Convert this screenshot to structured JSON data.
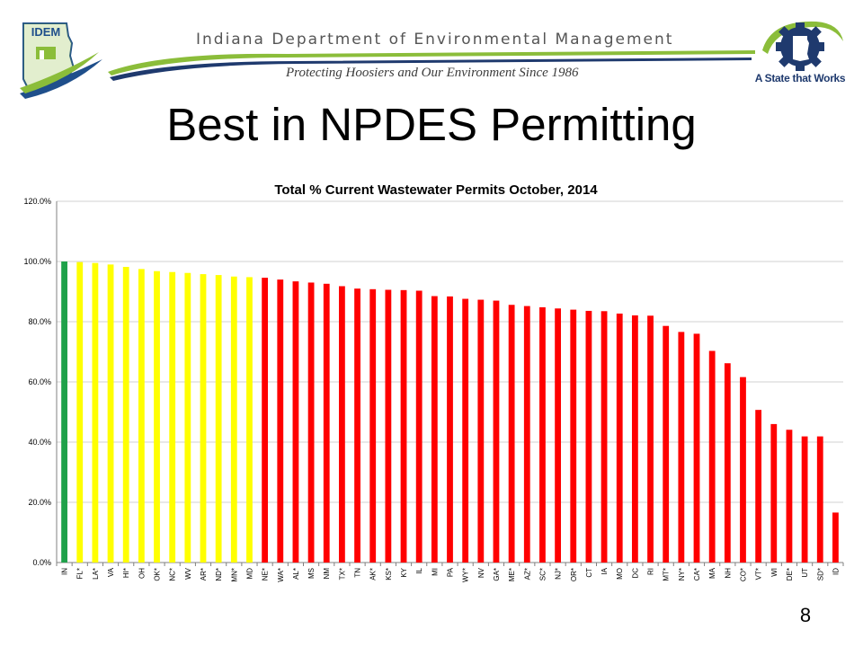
{
  "header": {
    "agency_name": "Indiana Department of Environmental Management",
    "tagline": "Protecting Hoosiers and Our Environment Since 1986",
    "logo_text": "IDEM",
    "state_slogan": "A State that Works",
    "icons": {
      "left_logo": "idem-indiana-logo-icon",
      "right_logo": "indiana-state-gear-logo-icon"
    },
    "colors": {
      "swoosh_green": "#8bbd3a",
      "swoosh_navy": "#1f3a6e",
      "logo_blue": "#1f4f8b"
    }
  },
  "slide": {
    "title": "Best in NPDES Permitting",
    "page_number": "8"
  },
  "chart_data": {
    "type": "bar",
    "title": "Total % Current Wastewater Permits October, 2014",
    "xlabel": "",
    "ylabel": "",
    "ylim": [
      0,
      120
    ],
    "yticks": [
      0,
      20,
      40,
      60,
      80,
      100,
      120
    ],
    "ytick_labels": [
      "0.0%",
      "20.0%",
      "40.0%",
      "60.0%",
      "80.0%",
      "100.0%",
      "120.0%"
    ],
    "grid": true,
    "legend": "none",
    "colors": {
      "green": "#1fa14a",
      "yellow": "#ffff00",
      "red": "#ff0000",
      "grid": "#d0d0d0",
      "axis": "#808080"
    },
    "categories": [
      "IN",
      "FL*",
      "LA*",
      "VA",
      "HI*",
      "OH",
      "OK*",
      "NC*",
      "WV",
      "AR*",
      "ND*",
      "MN*",
      "MD",
      "NE*",
      "WA*",
      "AL*",
      "MS",
      "NM",
      "TX*",
      "TN",
      "AK*",
      "KS*",
      "KY",
      "IL",
      "MI",
      "PA",
      "WY*",
      "NV",
      "GA*",
      "ME*",
      "AZ*",
      "SC*",
      "NJ*",
      "OR*",
      "CT",
      "IA",
      "MO",
      "DC",
      "RI",
      "MT*",
      "NY*",
      "CA*",
      "MA",
      "NH",
      "CO*",
      "VT*",
      "WI",
      "DE*",
      "UT",
      "SD*",
      "ID"
    ],
    "values": [
      100.0,
      99.8,
      99.5,
      99.0,
      98.2,
      97.5,
      96.8,
      96.5,
      96.2,
      95.8,
      95.5,
      95.0,
      94.8,
      94.6,
      94.0,
      93.4,
      93.0,
      92.6,
      91.8,
      91.0,
      90.8,
      90.6,
      90.5,
      90.3,
      88.5,
      88.4,
      87.6,
      87.3,
      87.0,
      85.6,
      85.2,
      84.8,
      84.4,
      84.0,
      83.6,
      83.5,
      82.7,
      82.1,
      82.0,
      78.6,
      76.6,
      76.0,
      70.3,
      66.2,
      61.6,
      50.7,
      46.0,
      44.1,
      41.9,
      41.9,
      16.6
    ],
    "bar_colors": [
      "green",
      "yellow",
      "yellow",
      "yellow",
      "yellow",
      "yellow",
      "yellow",
      "yellow",
      "yellow",
      "yellow",
      "yellow",
      "yellow",
      "yellow",
      "red",
      "red",
      "red",
      "red",
      "red",
      "red",
      "red",
      "red",
      "red",
      "red",
      "red",
      "red",
      "red",
      "red",
      "red",
      "red",
      "red",
      "red",
      "red",
      "red",
      "red",
      "red",
      "red",
      "red",
      "red",
      "red",
      "red",
      "red",
      "red",
      "red",
      "red",
      "red",
      "red",
      "red",
      "red",
      "red",
      "red",
      "red"
    ]
  }
}
